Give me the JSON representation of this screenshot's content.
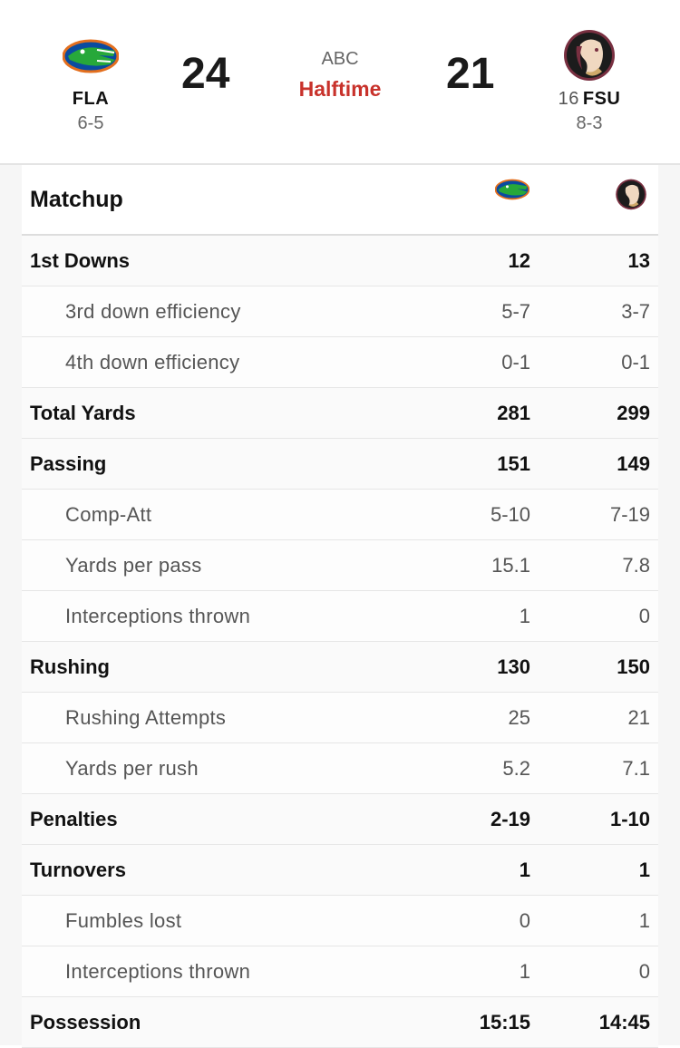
{
  "game": {
    "network": "ABC",
    "period": "Halftime",
    "home": {
      "abbr": "FLA",
      "record": "6-5",
      "score": "24",
      "rank": "",
      "logo": "gator-logo-icon",
      "color": "#0a4ba0"
    },
    "away": {
      "abbr": "FSU",
      "record": "8-3",
      "score": "21",
      "rank": "16",
      "logo": "seminole-logo-icon",
      "color": "#782f40"
    },
    "status_color": "#c8322b"
  },
  "matchup": {
    "title": "Matchup",
    "rows": [
      {
        "label": "1st Downs",
        "home": "12",
        "away": "13",
        "level": "main"
      },
      {
        "label": "3rd down efficiency",
        "home": "5-7",
        "away": "3-7",
        "level": "sub"
      },
      {
        "label": "4th down efficiency",
        "home": "0-1",
        "away": "0-1",
        "level": "sub"
      },
      {
        "label": "Total Yards",
        "home": "281",
        "away": "299",
        "level": "main"
      },
      {
        "label": "Passing",
        "home": "151",
        "away": "149",
        "level": "main"
      },
      {
        "label": "Comp-Att",
        "home": "5-10",
        "away": "7-19",
        "level": "sub"
      },
      {
        "label": "Yards per pass",
        "home": "15.1",
        "away": "7.8",
        "level": "sub"
      },
      {
        "label": "Interceptions thrown",
        "home": "1",
        "away": "0",
        "level": "sub"
      },
      {
        "label": "Rushing",
        "home": "130",
        "away": "150",
        "level": "main"
      },
      {
        "label": "Rushing Attempts",
        "home": "25",
        "away": "21",
        "level": "sub"
      },
      {
        "label": "Yards per rush",
        "home": "5.2",
        "away": "7.1",
        "level": "sub"
      },
      {
        "label": "Penalties",
        "home": "2-19",
        "away": "1-10",
        "level": "main"
      },
      {
        "label": "Turnovers",
        "home": "1",
        "away": "1",
        "level": "main"
      },
      {
        "label": "Fumbles lost",
        "home": "0",
        "away": "1",
        "level": "sub"
      },
      {
        "label": "Interceptions thrown",
        "home": "1",
        "away": "0",
        "level": "sub"
      },
      {
        "label": "Possession",
        "home": "15:15",
        "away": "14:45",
        "level": "main"
      }
    ]
  }
}
